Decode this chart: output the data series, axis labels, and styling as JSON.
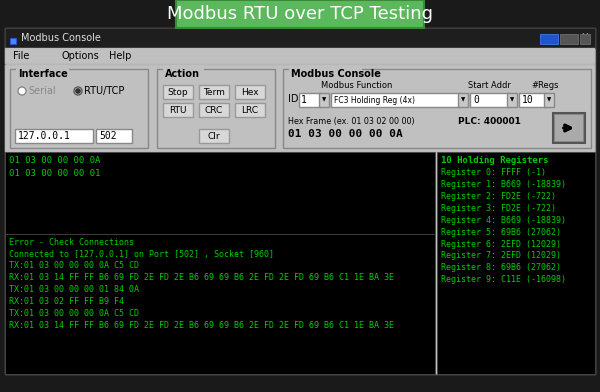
{
  "title": "Modbus RTU over TCP Testing",
  "title_bg": "#5cb85c",
  "title_color": "#ffffff",
  "window_title": "Modbus Console",
  "outer_bg": "#1a1a1a",
  "win_bg": "#2b2b2b",
  "titlebar_bg": "#1e1e1e",
  "menubar_bg": "#c0c0c0",
  "controls_bg": "#c8c8c8",
  "black_bg": "#000000",
  "green_text": "#00cc00",
  "menu_items": [
    "File",
    "Options",
    "Help"
  ],
  "interface_label": "Interface",
  "serial_label": "Serial",
  "rtutcp_label": "RTU/TCP",
  "ip_value": "127.0.0.1",
  "port_value": "502",
  "action_label": "Action",
  "btn_stop": "Stop",
  "btn_term": "Term",
  "btn_hex": "Hex",
  "btn_rtu": "RTU",
  "btn_crc": "CRC",
  "btn_lrc": "LRC",
  "btn_clr": "Clr",
  "modbus_console_label": "Modbus Console",
  "modbus_func_label": "Modbus Function",
  "start_addr_label": "Start Addr",
  "nregs_label": "#Regs",
  "id_label": "ID",
  "id_value": "1",
  "func_value": "FC3 Holding Reg (4x)",
  "addr_value": "0",
  "nregs_value": "10",
  "hex_frame_label": "Hex Frame (ex. 01 03 02 00 00)",
  "plc_label": "PLC: 400001",
  "hex_frame_value": "01 03 00 00 00 0A",
  "console_top_lines": [
    "01 03 00 00 00 0A",
    "01 03 00 00 00 01"
  ],
  "console_bottom_lines": [
    "Error - Check Connections",
    "Connected to [127.0.0.1] on Port [502] , Socket [960]",
    "TX:01 03 00 00 00 0A C5 CD",
    "RX:01 03 14 FF FF B6 69 FD 2E FD 2E B6 69 69 B6 2E FD 2E FD 69 B6 C1 1E BA 3E",
    "TX:01 03 00 00 00 01 84 0A",
    "RX:01 03 02 FF FF B9 F4",
    "TX:01 03 00 00 00 0A C5 CD",
    "RX:01 03 14 FF FF B6 69 FD 2E FD 2E B6 69 69 B6 2E FD 2E FD 69 B6 C1 1E BA 3E"
  ],
  "register_title": "10 Holding Registers",
  "register_lines": [
    "Register 0: FFFF (-1)",
    "Register 1: B669 (-18839)",
    "Register 2: FD2E (-722)",
    "Register 3: FD2E (-722)",
    "Register 4: B669 (-18839)",
    "Register 5: 69B6 (27062)",
    "Register 6: 2EFD (12029)",
    "Register 7: 2EFD (12029)",
    "Register 8: 69B6 (27062)",
    "Register 9: C11E (-16098)"
  ]
}
